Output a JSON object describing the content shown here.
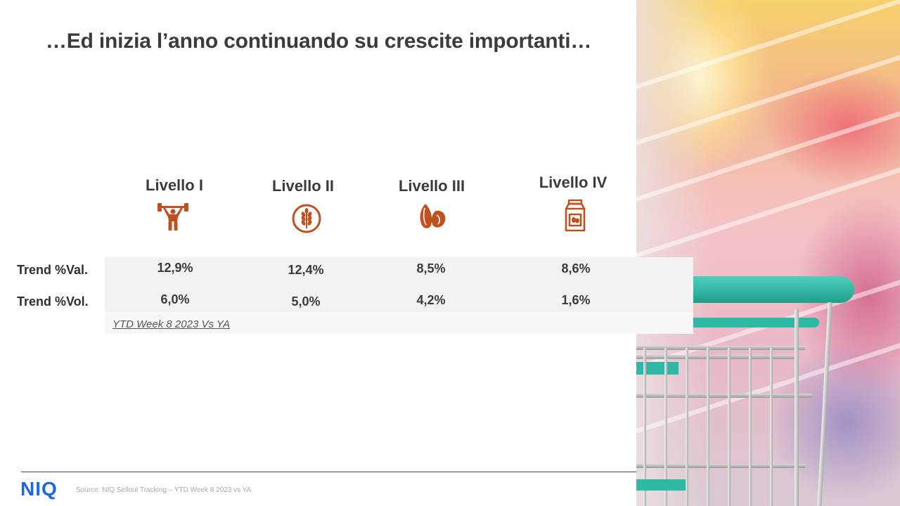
{
  "slide": {
    "title": "…Ed inizia l’anno continuando su crescite importanti…"
  },
  "levels": [
    {
      "label": "Livello I",
      "icon": "weightlifter-icon"
    },
    {
      "label": "Livello II",
      "icon": "grain-icon"
    },
    {
      "label": "Livello III",
      "icon": "seeds-icon"
    },
    {
      "label": "Livello IV",
      "icon": "milk-carton-icon"
    }
  ],
  "table": {
    "rows": [
      {
        "label": "Trend %Val.",
        "values": [
          "12,9%",
          "12,4%",
          "8,5%",
          "8,6%"
        ]
      },
      {
        "label": "Trend %Vol.",
        "values": [
          "6,0%",
          "5,0%",
          "4,2%",
          "1,6%"
        ]
      }
    ],
    "note": "YTD Week 8 2023 Vs YA"
  },
  "footer": {
    "logo": "NIQ",
    "source": "Source: NIQ Sellout Tracking – YTD Week 8 2023 vs YA"
  },
  "colors": {
    "accent_icon": "#c0501f",
    "logo": "#1f66e5",
    "cart_teal": "#2fb8a4"
  }
}
